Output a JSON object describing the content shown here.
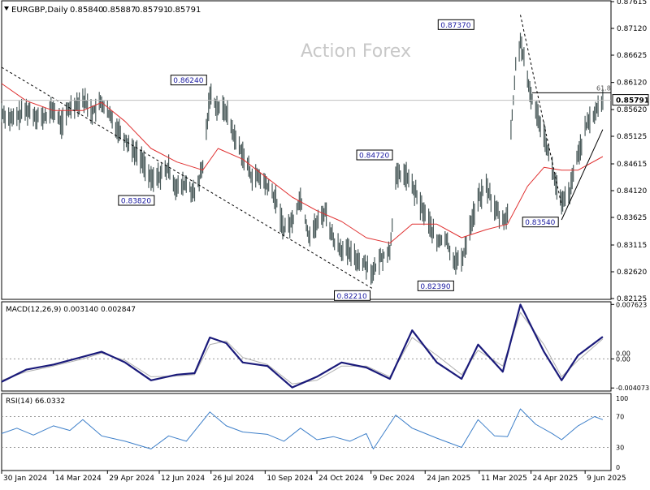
{
  "chart_data": [
    {
      "type": "line",
      "subtype": "ohlc-bars",
      "title": "EURGBP,Daily",
      "ohlc_header": [
        "0.85840",
        "0.85887",
        "0.85791",
        "0.85791"
      ],
      "watermark": "Action Forex",
      "y_ticks": [
        "0.87615",
        "0.87120",
        "0.86625",
        "0.86120",
        "0.85620",
        "0.85125",
        "0.84615",
        "0.84120",
        "0.83625",
        "0.83115",
        "0.82620",
        "0.82125"
      ],
      "ylim": [
        0.8211,
        0.8763
      ],
      "current_price": "0.85791",
      "fib_label": "61.8",
      "fib_level": 0.8593,
      "annotations": [
        {
          "text": "0.87370",
          "x": "2025-03-12",
          "y": 0.8737
        },
        {
          "text": "0.86240",
          "x": "2024-07-25",
          "y": 0.8624
        },
        {
          "text": "0.84720",
          "x": "2024-12-30",
          "y": 0.8472
        },
        {
          "text": "0.83820",
          "x": "2024-06-05",
          "y": 0.8382
        },
        {
          "text": "0.83540",
          "x": "2025-05-20",
          "y": 0.8354
        },
        {
          "text": "0.82390",
          "x": "2025-02-20",
          "y": 0.8239
        },
        {
          "text": "0.82210",
          "x": "2024-12-11",
          "y": 0.8221
        }
      ],
      "series": [
        {
          "kind": "close",
          "color": "#4a5a5a",
          "points": [
            [
              "2024-01-30",
              0.8557
            ],
            [
              "2024-02-08",
              0.8542
            ],
            [
              "2024-02-20",
              0.8561
            ],
            [
              "2024-03-05",
              0.8545
            ],
            [
              "2024-03-14",
              0.8562
            ],
            [
              "2024-03-21",
              0.8535
            ],
            [
              "2024-03-28",
              0.8566
            ],
            [
              "2024-04-08",
              0.8582
            ],
            [
              "2024-04-16",
              0.8558
            ],
            [
              "2024-04-24",
              0.8574
            ],
            [
              "2024-05-02",
              0.8545
            ],
            [
              "2024-05-14",
              0.8508
            ],
            [
              "2024-05-23",
              0.8482
            ],
            [
              "2024-05-30",
              0.8463
            ],
            [
              "2024-06-05",
              0.843
            ],
            [
              "2024-06-12",
              0.844
            ],
            [
              "2024-06-20",
              0.8452
            ],
            [
              "2024-06-27",
              0.8415
            ],
            [
              "2024-07-05",
              0.8425
            ],
            [
              "2024-07-12",
              0.8403
            ],
            [
              "2024-07-19",
              0.8455
            ],
            [
              "2024-07-25",
              0.859
            ],
            [
              "2024-08-01",
              0.8565
            ],
            [
              "2024-08-08",
              0.856
            ],
            [
              "2024-08-15",
              0.851
            ],
            [
              "2024-08-22",
              0.848
            ],
            [
              "2024-08-29",
              0.844
            ],
            [
              "2024-09-05",
              0.8435
            ],
            [
              "2024-09-12",
              0.842
            ],
            [
              "2024-09-19",
              0.8395
            ],
            [
              "2024-09-26",
              0.834
            ],
            [
              "2024-10-03",
              0.8355
            ],
            [
              "2024-10-10",
              0.84
            ],
            [
              "2024-10-17",
              0.833
            ],
            [
              "2024-10-24",
              0.835
            ],
            [
              "2024-10-31",
              0.8375
            ],
            [
              "2024-11-07",
              0.832
            ],
            [
              "2024-11-14",
              0.8305
            ],
            [
              "2024-11-21",
              0.8295
            ],
            [
              "2024-11-28",
              0.8285
            ],
            [
              "2024-12-05",
              0.8275
            ],
            [
              "2024-12-11",
              0.826
            ],
            [
              "2024-12-18",
              0.829
            ],
            [
              "2024-12-25",
              0.83
            ],
            [
              "2024-12-30",
              0.8435
            ],
            [
              "2025-01-06",
              0.8445
            ],
            [
              "2025-01-13",
              0.842
            ],
            [
              "2025-01-20",
              0.8385
            ],
            [
              "2025-01-27",
              0.8355
            ],
            [
              "2025-02-03",
              0.8315
            ],
            [
              "2025-02-10",
              0.8325
            ],
            [
              "2025-02-17",
              0.8285
            ],
            [
              "2025-02-24",
              0.828
            ],
            [
              "2025-03-03",
              0.8345
            ],
            [
              "2025-03-10",
              0.8395
            ],
            [
              "2025-03-17",
              0.842
            ],
            [
              "2025-03-24",
              0.838
            ],
            [
              "2025-03-31",
              0.8355
            ],
            [
              "2025-04-04",
              0.837
            ],
            [
              "2025-04-07",
              0.852
            ],
            [
              "2025-04-11",
              0.864
            ],
            [
              "2025-04-15",
              0.869
            ],
            [
              "2025-04-21",
              0.861
            ],
            [
              "2025-04-28",
              0.856
            ],
            [
              "2025-05-05",
              0.852
            ],
            [
              "2025-05-12",
              0.845
            ],
            [
              "2025-05-20",
              0.8385
            ],
            [
              "2025-05-27",
              0.841
            ],
            [
              "2025-06-03",
              0.848
            ],
            [
              "2025-06-10",
              0.853
            ],
            [
              "2025-06-17",
              0.8555
            ],
            [
              "2025-06-24",
              0.8579
            ]
          ]
        },
        {
          "kind": "sma",
          "color": "#e03030",
          "points": [
            [
              "2024-01-30",
              0.861
            ],
            [
              "2024-02-20",
              0.8578
            ],
            [
              "2024-03-14",
              0.856
            ],
            [
              "2024-04-08",
              0.856
            ],
            [
              "2024-04-24",
              0.8575
            ],
            [
              "2024-05-14",
              0.854
            ],
            [
              "2024-06-05",
              0.849
            ],
            [
              "2024-06-27",
              0.8465
            ],
            [
              "2024-07-19",
              0.845
            ],
            [
              "2024-08-01",
              0.849
            ],
            [
              "2024-08-22",
              0.847
            ],
            [
              "2024-09-12",
              0.8435
            ],
            [
              "2024-10-03",
              0.84
            ],
            [
              "2024-10-24",
              0.8375
            ],
            [
              "2024-11-14",
              0.8355
            ],
            [
              "2024-12-05",
              0.8325
            ],
            [
              "2024-12-25",
              0.8315
            ],
            [
              "2025-01-13",
              0.835
            ],
            [
              "2025-02-03",
              0.835
            ],
            [
              "2025-02-24",
              0.8325
            ],
            [
              "2025-03-17",
              0.834
            ],
            [
              "2025-04-04",
              0.835
            ],
            [
              "2025-04-21",
              0.842
            ],
            [
              "2025-05-05",
              0.8455
            ],
            [
              "2025-05-20",
              0.845
            ],
            [
              "2025-06-03",
              0.845
            ],
            [
              "2025-06-24",
              0.8475
            ]
          ]
        }
      ],
      "trendlines": [
        {
          "style": "dashed",
          "from": [
            "2024-01-30",
            0.864
          ],
          "to": [
            "2024-12-11",
            0.823
          ]
        },
        {
          "style": "dashed",
          "from": [
            "2025-04-15",
            0.8737
          ],
          "to": [
            "2025-05-20",
            0.8385
          ]
        },
        {
          "style": "solid",
          "from": [
            "2025-05-20",
            0.8358
          ],
          "to": [
            "2025-06-24",
            0.8525
          ]
        }
      ]
    },
    {
      "type": "line",
      "title": "MACD(12,26,9) 0.003140 0.002847",
      "y_ticks": [
        "0.007623",
        "0.00",
        "-0.004073"
      ],
      "current_label": "0.00",
      "ylim": [
        -0.0045,
        0.008
      ],
      "series": [
        {
          "kind": "macd",
          "color": "#1a1a7a",
          "points": [
            [
              "2024-01-30",
              -0.0032
            ],
            [
              "2024-02-20",
              -0.0015
            ],
            [
              "2024-03-14",
              -0.0008
            ],
            [
              "2024-04-08",
              0.0003
            ],
            [
              "2024-04-24",
              0.001
            ],
            [
              "2024-05-14",
              -0.0005
            ],
            [
              "2024-06-05",
              -0.003
            ],
            [
              "2024-06-27",
              -0.0022
            ],
            [
              "2024-07-12",
              -0.002
            ],
            [
              "2024-07-25",
              0.003
            ],
            [
              "2024-08-08",
              0.0022
            ],
            [
              "2024-08-22",
              -0.0005
            ],
            [
              "2024-09-12",
              -0.001
            ],
            [
              "2024-10-03",
              -0.004
            ],
            [
              "2024-10-24",
              -0.0025
            ],
            [
              "2024-11-14",
              -0.0005
            ],
            [
              "2024-12-05",
              -0.0012
            ],
            [
              "2024-12-25",
              -0.0028
            ],
            [
              "2025-01-13",
              0.004
            ],
            [
              "2025-02-03",
              -0.0005
            ],
            [
              "2025-02-24",
              -0.0028
            ],
            [
              "2025-03-10",
              0.002
            ],
            [
              "2025-03-31",
              -0.0018
            ],
            [
              "2025-04-15",
              0.0076
            ],
            [
              "2025-05-05",
              0.001
            ],
            [
              "2025-05-20",
              -0.003
            ],
            [
              "2025-06-03",
              0.0005
            ],
            [
              "2025-06-24",
              0.0031
            ]
          ]
        },
        {
          "kind": "signal",
          "color": "#b0b0b0",
          "points": [
            [
              "2024-01-30",
              -0.003
            ],
            [
              "2024-02-20",
              -0.0018
            ],
            [
              "2024-03-14",
              -0.001
            ],
            [
              "2024-04-08",
              0.0
            ],
            [
              "2024-04-24",
              0.0008
            ],
            [
              "2024-05-14",
              -0.0002
            ],
            [
              "2024-06-05",
              -0.0025
            ],
            [
              "2024-06-27",
              -0.0024
            ],
            [
              "2024-07-12",
              -0.0022
            ],
            [
              "2024-07-25",
              0.002
            ],
            [
              "2024-08-08",
              0.0025
            ],
            [
              "2024-08-22",
              0.0002
            ],
            [
              "2024-09-12",
              -0.0008
            ],
            [
              "2024-10-03",
              -0.0035
            ],
            [
              "2024-10-24",
              -0.003
            ],
            [
              "2024-11-14",
              -0.001
            ],
            [
              "2024-12-05",
              -0.001
            ],
            [
              "2024-12-25",
              -0.0025
            ],
            [
              "2025-01-13",
              0.003
            ],
            [
              "2025-02-03",
              0.0005
            ],
            [
              "2025-02-24",
              -0.0022
            ],
            [
              "2025-03-10",
              0.0012
            ],
            [
              "2025-03-31",
              -0.001
            ],
            [
              "2025-04-15",
              0.0065
            ],
            [
              "2025-05-05",
              0.002
            ],
            [
              "2025-05-20",
              -0.0025
            ],
            [
              "2025-06-03",
              -0.0002
            ],
            [
              "2025-06-24",
              0.0028
            ]
          ]
        }
      ]
    },
    {
      "type": "line",
      "title": "RSI(14) 66.0332",
      "y_ticks": [
        "100",
        "70",
        "30",
        "0"
      ],
      "levels": [
        70,
        30
      ],
      "ylim": [
        0,
        100
      ],
      "series": [
        {
          "kind": "rsi",
          "color": "#3d7fc9",
          "points": [
            [
              "2024-01-30",
              48
            ],
            [
              "2024-02-12",
              55
            ],
            [
              "2024-02-26",
              46
            ],
            [
              "2024-03-14",
              58
            ],
            [
              "2024-03-28",
              52
            ],
            [
              "2024-04-08",
              66
            ],
            [
              "2024-04-24",
              45
            ],
            [
              "2024-05-14",
              38
            ],
            [
              "2024-06-05",
              28
            ],
            [
              "2024-06-20",
              45
            ],
            [
              "2024-07-05",
              38
            ],
            [
              "2024-07-25",
              76
            ],
            [
              "2024-08-08",
              58
            ],
            [
              "2024-08-22",
              50
            ],
            [
              "2024-09-12",
              47
            ],
            [
              "2024-09-26",
              38
            ],
            [
              "2024-10-10",
              55
            ],
            [
              "2024-10-24",
              40
            ],
            [
              "2024-11-07",
              44
            ],
            [
              "2024-11-21",
              38
            ],
            [
              "2024-12-05",
              48
            ],
            [
              "2024-12-11",
              28
            ],
            [
              "2024-12-30",
              72
            ],
            [
              "2025-01-13",
              55
            ],
            [
              "2025-02-03",
              42
            ],
            [
              "2025-02-24",
              30
            ],
            [
              "2025-03-10",
              66
            ],
            [
              "2025-03-24",
              45
            ],
            [
              "2025-04-04",
              44
            ],
            [
              "2025-04-15",
              80
            ],
            [
              "2025-04-28",
              60
            ],
            [
              "2025-05-12",
              48
            ],
            [
              "2025-05-20",
              40
            ],
            [
              "2025-06-03",
              58
            ],
            [
              "2025-06-17",
              70
            ],
            [
              "2025-06-24",
              66
            ]
          ]
        }
      ]
    }
  ],
  "x_axis": {
    "labels": [
      {
        "text": "30 Jan 2024",
        "date": "2024-01-30"
      },
      {
        "text": "14 Mar 2024",
        "date": "2024-03-14"
      },
      {
        "text": "29 Apr 2024",
        "date": "2024-04-29"
      },
      {
        "text": "12 Jun 2024",
        "date": "2024-06-12"
      },
      {
        "text": "26 Jul 2024",
        "date": "2024-07-26"
      },
      {
        "text": "10 Sep 2024",
        "date": "2024-09-10"
      },
      {
        "text": "24 Oct 2024",
        "date": "2024-10-24"
      },
      {
        "text": "9 Dec 2024",
        "date": "2024-12-09"
      },
      {
        "text": "24 Jan 2025",
        "date": "2025-01-24"
      },
      {
        "text": "11 Mar 2025",
        "date": "2025-03-11"
      },
      {
        "text": "24 Apr 2025",
        "date": "2025-04-24"
      },
      {
        "text": "9 Jun 2025",
        "date": "2025-06-09"
      }
    ],
    "range": [
      "2024-01-30",
      "2025-07-01"
    ]
  },
  "colors": {
    "price_bars": "#4a5a5a",
    "sma": "#e03030",
    "macd": "#1a1a7a",
    "signal": "#b0b0b0",
    "rsi": "#3d7fc9",
    "label_text": "#1a1aa0",
    "watermark": "#c8c8c8",
    "price_tag_bg": "#ffffff"
  }
}
